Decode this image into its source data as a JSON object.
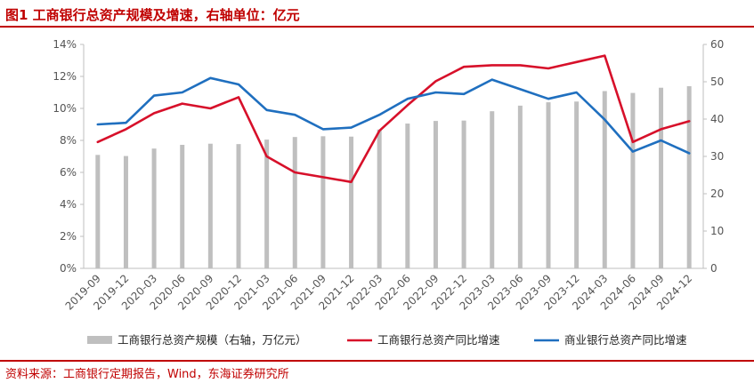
{
  "figure": {
    "title": "图1  工商银行总资产规模及增速，右轴单位：亿元",
    "source": "资料来源：工商银行定期报告，Wind，东海证券研究所"
  },
  "colors": {
    "accent": "#c00000",
    "bars": "#bfbfbf",
    "icbc_line": "#d7102a",
    "sector_line": "#1f6fbf"
  },
  "chart_data": {
    "type": "bar+line",
    "categories": [
      "2019-09",
      "2019-12",
      "2020-03",
      "2020-06",
      "2020-09",
      "2020-12",
      "2021-03",
      "2021-06",
      "2021-09",
      "2021-12",
      "2022-03",
      "2022-06",
      "2022-09",
      "2022-12",
      "2023-03",
      "2023-06",
      "2023-09",
      "2023-12",
      "2024-03",
      "2024-06",
      "2024-09",
      "2024-12"
    ],
    "left_axis": {
      "min": 0,
      "max": 14,
      "step": 2,
      "unit": "%",
      "ticks": [
        "0%",
        "2%",
        "4%",
        "6%",
        "8%",
        "10%",
        "12%",
        "14%"
      ]
    },
    "right_axis": {
      "min": 0,
      "max": 60,
      "step": 10,
      "ticks": [
        "0",
        "10",
        "20",
        "30",
        "40",
        "50",
        "60"
      ]
    },
    "grid": false,
    "legend_position": "bottom",
    "series": [
      {
        "name": "工商银行总资产规模（右轴，万亿元）",
        "type": "bar",
        "axis": "right",
        "values": [
          30.4,
          30.1,
          32.1,
          33.1,
          33.4,
          33.3,
          34.5,
          35.2,
          35.4,
          35.3,
          37.2,
          38.8,
          39.5,
          39.6,
          42.1,
          43.6,
          44.5,
          44.7,
          47.5,
          47.0,
          48.4,
          48.8
        ]
      },
      {
        "name": "工商银行总资产同比增速",
        "type": "line",
        "axis": "left",
        "values": [
          7.9,
          8.7,
          9.7,
          10.3,
          10.0,
          10.7,
          7.0,
          6.0,
          5.7,
          5.4,
          8.6,
          10.2,
          11.7,
          12.6,
          12.7,
          12.7,
          12.5,
          12.9,
          13.3,
          7.9,
          8.7,
          9.2
        ]
      },
      {
        "name": "商业银行总资产同比增速",
        "type": "line",
        "axis": "left",
        "values": [
          9.0,
          9.1,
          10.8,
          11.0,
          11.9,
          11.5,
          9.9,
          9.6,
          8.7,
          8.8,
          9.6,
          10.6,
          11.0,
          10.9,
          11.8,
          11.2,
          10.6,
          11.0,
          9.3,
          7.3,
          8.0,
          7.2
        ]
      }
    ]
  }
}
